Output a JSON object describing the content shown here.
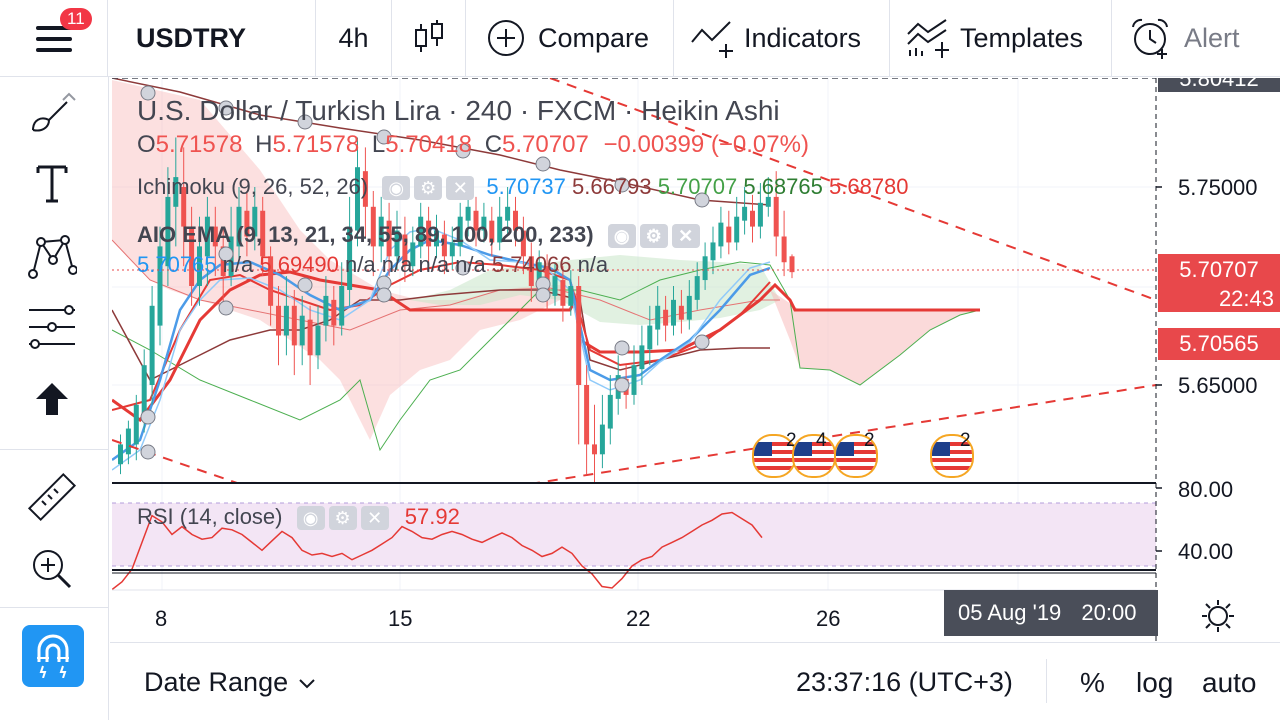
{
  "toolbar": {
    "notification_count": "11",
    "symbol": "USDTRY",
    "interval": "4h",
    "compare": "Compare",
    "indicators": "Indicators",
    "templates": "Templates",
    "alert": "Alert"
  },
  "legend": {
    "title_symbol": "U.S. Dollar / Turkish Lira",
    "title_sep1": "·",
    "title_interval": "240",
    "title_sep2": "·",
    "title_exchange": "FXCM",
    "title_sep3": "·",
    "title_style": "Heikin Ashi",
    "o_label": "O",
    "o_value": "5.71578",
    "h_label": "H",
    "h_value": "5.71578",
    "l_label": "L",
    "l_value": "5.70418",
    "c_label": "C",
    "c_value": "5.70707",
    "change": "−0.00399 (−0.07%)",
    "ichimoku_label": "Ichimoku (9, 26, 52, 26)",
    "ichimoku_values": [
      "5.70737",
      "5.66793",
      "5.70707",
      "5.68765",
      "5.68780"
    ],
    "ema_label": "AIO EMA (9, 13, 21, 34, 55, 89, 100, 200, 233)",
    "ema_values": [
      "5.70765",
      "n/a",
      "5.69490",
      "n/a",
      "n/a",
      "n/a",
      "n/a",
      "5.74066",
      "n/a"
    ],
    "rsi_label": "RSI (14, close)",
    "rsi_value": "57.92"
  },
  "price_axis": {
    "top_value": "5.80412",
    "ticks": [
      "5.75000",
      "5.65000"
    ],
    "current_price": "5.70707",
    "countdown": "22:43",
    "second_price": "5.70565",
    "rsi_ticks": [
      "80.00",
      "40.00"
    ]
  },
  "time_axis": {
    "ticks": [
      "8",
      "15",
      "22",
      "26"
    ],
    "crosshair_date": "05 Aug '19",
    "crosshair_time": "20:00"
  },
  "events": {
    "counts": [
      "2",
      "4",
      "2",
      "2"
    ]
  },
  "bottombar": {
    "date_range": "Date Range",
    "clock": "23:37:16 (UTC+3)",
    "percent": "%",
    "log": "log",
    "auto": "auto"
  },
  "colors": {
    "up": "#26a69a",
    "down": "#ef5350",
    "label_red": "#e8484b",
    "ema_blue": "#4c9be8",
    "ichi_green": "#4caf50",
    "ichi_maroon": "#8d3a3a",
    "rsi_line": "#e53935",
    "rsi_fill": "#f3e5f5"
  },
  "chart_data": [
    {
      "type": "candlestick",
      "style": "Heikin Ashi",
      "ylim": [
        5.6,
        5.81
      ],
      "x_ticks": [
        "8",
        "15",
        "22",
        "26"
      ],
      "y_ticks": [
        5.75,
        5.65
      ],
      "candles": [
        {
          "o": 5.61,
          "c": 5.62,
          "h": 5.625,
          "l": 5.605
        },
        {
          "o": 5.615,
          "c": 5.628,
          "h": 5.632,
          "l": 5.61
        },
        {
          "o": 5.62,
          "c": 5.64,
          "h": 5.645,
          "l": 5.612
        },
        {
          "o": 5.632,
          "c": 5.66,
          "h": 5.668,
          "l": 5.626
        },
        {
          "o": 5.65,
          "c": 5.69,
          "h": 5.7,
          "l": 5.64
        },
        {
          "o": 5.68,
          "c": 5.72,
          "h": 5.73,
          "l": 5.67
        },
        {
          "o": 5.71,
          "c": 5.745,
          "h": 5.76,
          "l": 5.7
        },
        {
          "o": 5.74,
          "c": 5.755,
          "h": 5.775,
          "l": 5.72
        },
        {
          "o": 5.75,
          "c": 5.73,
          "h": 5.77,
          "l": 5.71
        },
        {
          "o": 5.73,
          "c": 5.7,
          "h": 5.74,
          "l": 5.69
        },
        {
          "o": 5.7,
          "c": 5.72,
          "h": 5.735,
          "l": 5.69
        },
        {
          "o": 5.715,
          "c": 5.735,
          "h": 5.745,
          "l": 5.7
        },
        {
          "o": 5.73,
          "c": 5.72,
          "h": 5.74,
          "l": 5.705
        },
        {
          "o": 5.72,
          "c": 5.705,
          "h": 5.73,
          "l": 5.69
        },
        {
          "o": 5.705,
          "c": 5.725,
          "h": 5.74,
          "l": 5.7
        },
        {
          "o": 5.72,
          "c": 5.74,
          "h": 5.75,
          "l": 5.712
        },
        {
          "o": 5.738,
          "c": 5.725,
          "h": 5.748,
          "l": 5.715
        },
        {
          "o": 5.725,
          "c": 5.74,
          "h": 5.75,
          "l": 5.718
        },
        {
          "o": 5.738,
          "c": 5.715,
          "h": 5.745,
          "l": 5.705
        },
        {
          "o": 5.715,
          "c": 5.69,
          "h": 5.72,
          "l": 5.68
        },
        {
          "o": 5.69,
          "c": 5.675,
          "h": 5.7,
          "l": 5.66
        },
        {
          "o": 5.675,
          "c": 5.69,
          "h": 5.705,
          "l": 5.665
        },
        {
          "o": 5.69,
          "c": 5.67,
          "h": 5.698,
          "l": 5.655
        },
        {
          "o": 5.67,
          "c": 5.685,
          "h": 5.695,
          "l": 5.66
        },
        {
          "o": 5.683,
          "c": 5.665,
          "h": 5.69,
          "l": 5.65
        },
        {
          "o": 5.665,
          "c": 5.68,
          "h": 5.69,
          "l": 5.658
        },
        {
          "o": 5.68,
          "c": 5.695,
          "h": 5.705,
          "l": 5.672
        },
        {
          "o": 5.693,
          "c": 5.68,
          "h": 5.7,
          "l": 5.67
        },
        {
          "o": 5.68,
          "c": 5.7,
          "h": 5.712,
          "l": 5.675
        },
        {
          "o": 5.698,
          "c": 5.73,
          "h": 5.745,
          "l": 5.69
        },
        {
          "o": 5.728,
          "c": 5.76,
          "h": 5.775,
          "l": 5.72
        },
        {
          "o": 5.758,
          "c": 5.74,
          "h": 5.77,
          "l": 5.725
        },
        {
          "o": 5.74,
          "c": 5.72,
          "h": 5.748,
          "l": 5.705
        },
        {
          "o": 5.72,
          "c": 5.735,
          "h": 5.745,
          "l": 5.712
        },
        {
          "o": 5.733,
          "c": 5.715,
          "h": 5.742,
          "l": 5.705
        },
        {
          "o": 5.715,
          "c": 5.728,
          "h": 5.738,
          "l": 5.708
        },
        {
          "o": 5.726,
          "c": 5.71,
          "h": 5.735,
          "l": 5.702
        },
        {
          "o": 5.71,
          "c": 5.722,
          "h": 5.73,
          "l": 5.705
        },
        {
          "o": 5.72,
          "c": 5.735,
          "h": 5.742,
          "l": 5.714
        },
        {
          "o": 5.733,
          "c": 5.72,
          "h": 5.74,
          "l": 5.712
        },
        {
          "o": 5.72,
          "c": 5.728,
          "h": 5.736,
          "l": 5.714
        },
        {
          "o": 5.726,
          "c": 5.715,
          "h": 5.733,
          "l": 5.706
        },
        {
          "o": 5.715,
          "c": 5.722,
          "h": 5.73,
          "l": 5.708
        },
        {
          "o": 5.72,
          "c": 5.735,
          "h": 5.742,
          "l": 5.715
        },
        {
          "o": 5.733,
          "c": 5.74,
          "h": 5.748,
          "l": 5.725
        },
        {
          "o": 5.738,
          "c": 5.728,
          "h": 5.745,
          "l": 5.72
        },
        {
          "o": 5.728,
          "c": 5.735,
          "h": 5.742,
          "l": 5.722
        },
        {
          "o": 5.733,
          "c": 5.722,
          "h": 5.74,
          "l": 5.715
        },
        {
          "o": 5.722,
          "c": 5.735,
          "h": 5.745,
          "l": 5.718
        },
        {
          "o": 5.733,
          "c": 5.74,
          "h": 5.75,
          "l": 5.726
        },
        {
          "o": 5.738,
          "c": 5.728,
          "h": 5.745,
          "l": 5.72
        },
        {
          "o": 5.728,
          "c": 5.715,
          "h": 5.735,
          "l": 5.706
        },
        {
          "o": 5.715,
          "c": 5.7,
          "h": 5.722,
          "l": 5.692
        },
        {
          "o": 5.7,
          "c": 5.712,
          "h": 5.718,
          "l": 5.695
        },
        {
          "o": 5.71,
          "c": 5.695,
          "h": 5.716,
          "l": 5.688
        },
        {
          "o": 5.695,
          "c": 5.705,
          "h": 5.712,
          "l": 5.69
        },
        {
          "o": 5.703,
          "c": 5.69,
          "h": 5.71,
          "l": 5.682
        },
        {
          "o": 5.69,
          "c": 5.7,
          "h": 5.708,
          "l": 5.685
        },
        {
          "o": 5.7,
          "c": 5.65,
          "h": 5.705,
          "l": 5.62
        },
        {
          "o": 5.65,
          "c": 5.62,
          "h": 5.66,
          "l": 5.605
        },
        {
          "o": 5.62,
          "c": 5.615,
          "h": 5.64,
          "l": 5.6
        },
        {
          "o": 5.615,
          "c": 5.63,
          "h": 5.645,
          "l": 5.608
        },
        {
          "o": 5.628,
          "c": 5.645,
          "h": 5.655,
          "l": 5.62
        },
        {
          "o": 5.643,
          "c": 5.655,
          "h": 5.665,
          "l": 5.635
        },
        {
          "o": 5.653,
          "c": 5.645,
          "h": 5.66,
          "l": 5.638
        },
        {
          "o": 5.645,
          "c": 5.66,
          "h": 5.67,
          "l": 5.64
        },
        {
          "o": 5.658,
          "c": 5.67,
          "h": 5.68,
          "l": 5.65
        },
        {
          "o": 5.668,
          "c": 5.68,
          "h": 5.69,
          "l": 5.66
        },
        {
          "o": 5.678,
          "c": 5.69,
          "h": 5.7,
          "l": 5.67
        },
        {
          "o": 5.688,
          "c": 5.68,
          "h": 5.695,
          "l": 5.672
        },
        {
          "o": 5.68,
          "c": 5.693,
          "h": 5.7,
          "l": 5.675
        },
        {
          "o": 5.69,
          "c": 5.683,
          "h": 5.698,
          "l": 5.676
        },
        {
          "o": 5.683,
          "c": 5.695,
          "h": 5.703,
          "l": 5.678
        },
        {
          "o": 5.693,
          "c": 5.705,
          "h": 5.712,
          "l": 5.688
        },
        {
          "o": 5.703,
          "c": 5.715,
          "h": 5.722,
          "l": 5.698
        },
        {
          "o": 5.713,
          "c": 5.722,
          "h": 5.73,
          "l": 5.706
        },
        {
          "o": 5.72,
          "c": 5.732,
          "h": 5.74,
          "l": 5.714
        },
        {
          "o": 5.73,
          "c": 5.722,
          "h": 5.738,
          "l": 5.716
        },
        {
          "o": 5.722,
          "c": 5.735,
          "h": 5.745,
          "l": 5.718
        },
        {
          "o": 5.733,
          "c": 5.74,
          "h": 5.75,
          "l": 5.726
        },
        {
          "o": 5.738,
          "c": 5.73,
          "h": 5.746,
          "l": 5.722
        },
        {
          "o": 5.73,
          "c": 5.742,
          "h": 5.752,
          "l": 5.724
        },
        {
          "o": 5.74,
          "c": 5.745,
          "h": 5.755,
          "l": 5.735
        },
        {
          "o": 5.745,
          "c": 5.725,
          "h": 5.758,
          "l": 5.715
        },
        {
          "o": 5.725,
          "c": 5.712,
          "h": 5.738,
          "l": 5.705
        },
        {
          "o": 5.715,
          "c": 5.707,
          "h": 5.716,
          "l": 5.704
        }
      ]
    },
    {
      "type": "line",
      "name": "RSI (14, close)",
      "ylim": [
        20,
        90
      ],
      "y_ticks": [
        80,
        40
      ],
      "values": [
        25,
        30,
        38,
        55,
        72,
        68,
        60,
        65,
        60,
        57,
        58,
        64,
        63,
        60,
        55,
        50,
        56,
        62,
        58,
        50,
        47,
        48,
        46,
        48,
        44,
        47,
        50,
        54,
        58,
        65,
        62,
        58,
        57,
        60,
        62,
        60,
        57,
        55,
        58,
        61,
        58,
        53,
        50,
        46,
        48,
        52,
        48,
        40,
        35,
        27,
        26,
        32,
        40,
        44,
        46,
        52,
        55,
        58,
        62,
        66,
        69,
        73,
        74,
        70,
        66,
        58
      ]
    }
  ]
}
